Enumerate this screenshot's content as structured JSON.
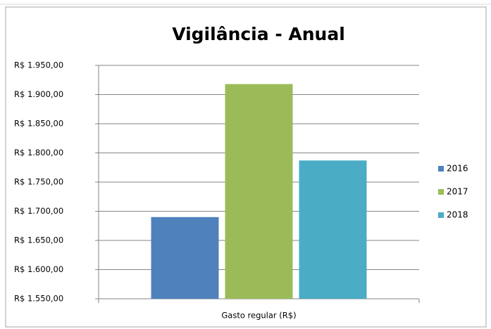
{
  "chart_data": {
    "type": "bar",
    "title": "Vigilância - Anual",
    "categories": [
      "Gasto regular (R$)"
    ],
    "series": [
      {
        "name": "2016",
        "color": "#4f81bd",
        "values": [
          1690
        ]
      },
      {
        "name": "2017",
        "color": "#9bbb59",
        "values": [
          1918
        ]
      },
      {
        "name": "2018",
        "color": "#4bacc6",
        "values": [
          1787
        ]
      }
    ],
    "ylim": [
      1550,
      1950
    ],
    "yticks": [
      {
        "value": 1550,
        "label": "R$ 1.550,00"
      },
      {
        "value": 1600,
        "label": "R$ 1.600,00"
      },
      {
        "value": 1650,
        "label": "R$ 1.650,00"
      },
      {
        "value": 1700,
        "label": "R$ 1.700,00"
      },
      {
        "value": 1750,
        "label": "R$ 1.750,00"
      },
      {
        "value": 1800,
        "label": "R$ 1.800,00"
      },
      {
        "value": 1850,
        "label": "R$ 1.850,00"
      },
      {
        "value": 1900,
        "label": "R$ 1.900,00"
      },
      {
        "value": 1950,
        "label": "R$ 1.950,00"
      }
    ],
    "grid": true,
    "legend": "right"
  }
}
